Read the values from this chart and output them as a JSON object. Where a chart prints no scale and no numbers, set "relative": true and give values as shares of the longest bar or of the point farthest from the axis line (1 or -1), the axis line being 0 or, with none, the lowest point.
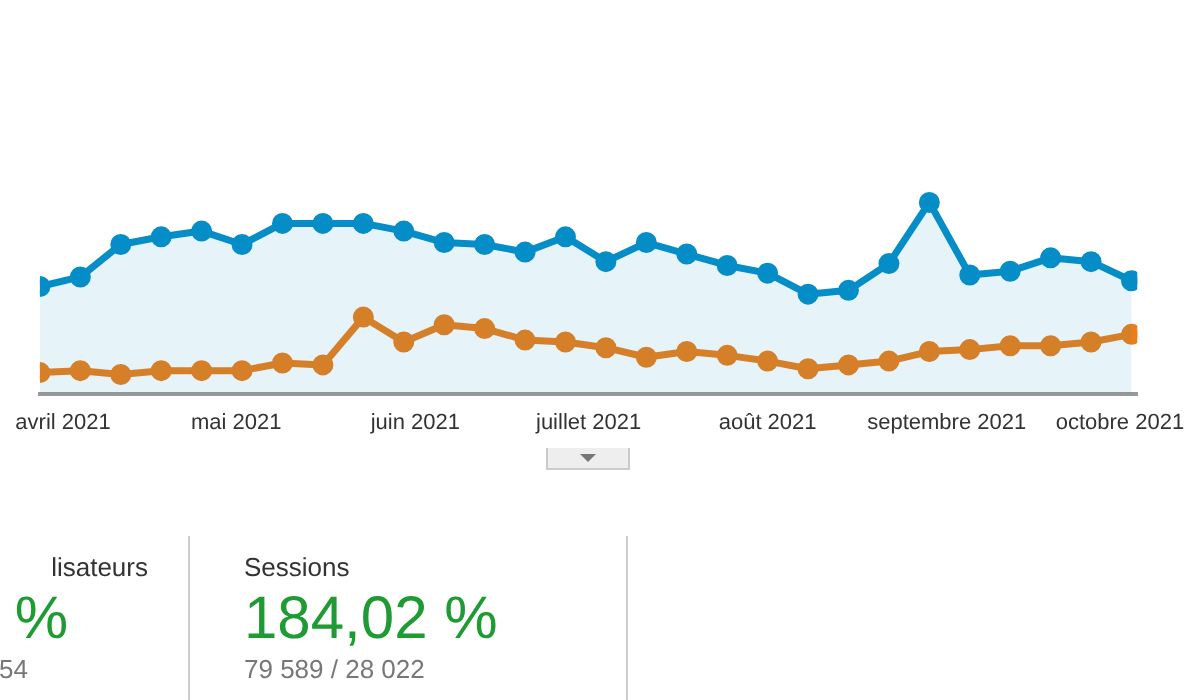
{
  "chart_data": {
    "type": "line",
    "relative": true,
    "marker": "circle",
    "tick_labels": "x",
    "x": [
      "2021-03-28",
      "2021-04-04",
      "2021-04-11",
      "2021-04-18",
      "2021-04-25",
      "2021-05-02",
      "2021-05-09",
      "2021-05-16",
      "2021-05-23",
      "2021-05-30",
      "2021-06-06",
      "2021-06-13",
      "2021-06-20",
      "2021-06-27",
      "2021-07-04",
      "2021-07-11",
      "2021-07-18",
      "2021-07-25",
      "2021-08-01",
      "2021-08-08",
      "2021-08-15",
      "2021-08-22",
      "2021-08-29",
      "2021-09-05",
      "2021-09-12",
      "2021-09-19",
      "2021-09-26",
      "2021-10-03"
    ],
    "xlim": [
      "2021-03-28",
      "2021-10-04"
    ],
    "xticks": [
      {
        "value": "2021-04-01",
        "label": "avril 2021"
      },
      {
        "value": "2021-05-01",
        "label": "mai 2021"
      },
      {
        "value": "2021-06-01",
        "label": "juin 2021"
      },
      {
        "value": "2021-07-01",
        "label": "juillet 2021"
      },
      {
        "value": "2021-08-01",
        "label": "août 2021"
      },
      {
        "value": "2021-09-01",
        "label": "septembre 2021"
      },
      {
        "value": "2021-10-01",
        "label": "octobre 2021"
      }
    ],
    "series": [
      {
        "type": "area",
        "color": "#058dc7",
        "values": [
          0.56,
          0.61,
          0.78,
          0.82,
          0.85,
          0.78,
          0.89,
          0.89,
          0.89,
          0.85,
          0.79,
          0.78,
          0.74,
          0.82,
          0.69,
          0.79,
          0.73,
          0.67,
          0.63,
          0.52,
          0.54,
          0.68,
          1,
          0.62,
          0.64,
          0.71,
          0.69,
          0.59
        ]
      },
      {
        "type": "line",
        "color": "#ed7e17",
        "values": [
          0.11,
          0.12,
          0.1,
          0.12,
          0.12,
          0.12,
          0.16,
          0.15,
          0.4,
          0.27,
          0.36,
          0.34,
          0.28,
          0.27,
          0.24,
          0.19,
          0.22,
          0.2,
          0.17,
          0.13,
          0.15,
          0.17,
          0.22,
          0.23,
          0.25,
          0.25,
          0.27,
          0.31
        ]
      }
    ],
    "annotations": [
      "lisateurs",
      "%",
      "54",
      "Sessions",
      "184,02 %",
      "79 589 / 28 022"
    ]
  }
}
